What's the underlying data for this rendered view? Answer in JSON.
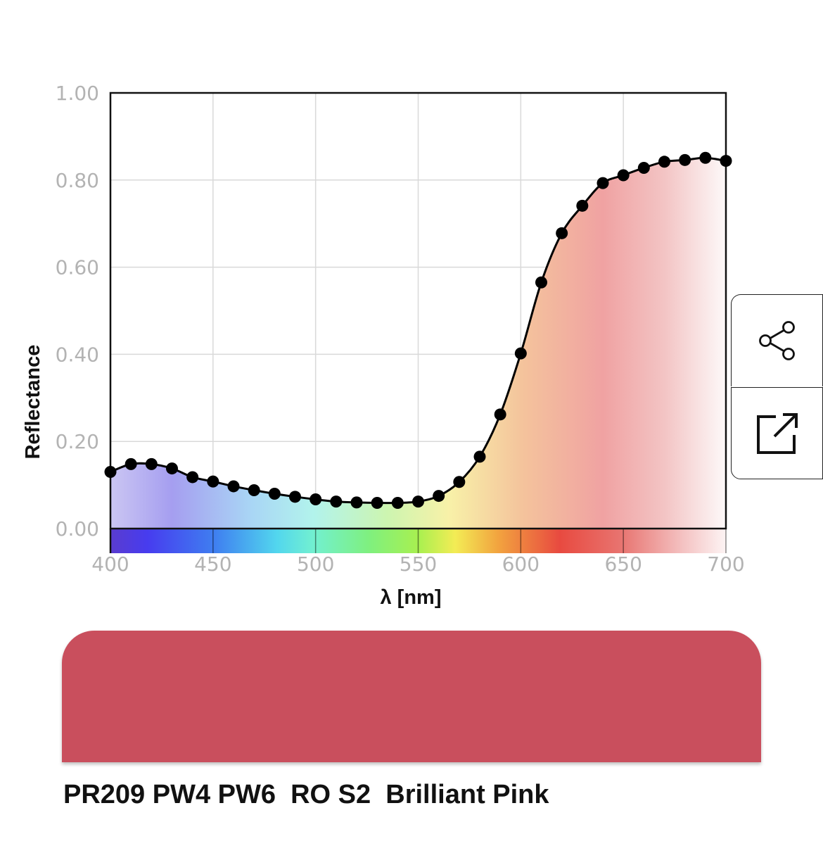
{
  "chart_data": {
    "type": "line",
    "title": "",
    "xlabel": "λ [nm]",
    "ylabel": "Reflectance",
    "xlim": [
      400,
      700
    ],
    "ylim": [
      0,
      1
    ],
    "x_ticks": [
      "400",
      "450",
      "500",
      "550",
      "600",
      "650",
      "700"
    ],
    "y_ticks": [
      "1.00",
      "0.80",
      "0.60",
      "0.40",
      "0.20",
      "0.00"
    ],
    "grid": true,
    "series": [
      {
        "x": [
          400,
          410,
          420,
          430,
          440,
          450,
          460,
          470,
          480,
          490,
          500,
          510,
          520,
          530,
          540,
          550,
          560,
          570,
          580,
          590,
          600,
          610,
          620,
          630,
          640,
          650,
          660,
          670,
          680,
          690,
          700
        ],
        "y": [
          0.13,
          0.148,
          0.148,
          0.138,
          0.118,
          0.108,
          0.097,
          0.088,
          0.08,
          0.073,
          0.067,
          0.062,
          0.06,
          0.059,
          0.059,
          0.062,
          0.075,
          0.107,
          0.165,
          0.262,
          0.402,
          0.565,
          0.678,
          0.741,
          0.793,
          0.811,
          0.828,
          0.842,
          0.846,
          0.851,
          0.844
        ]
      }
    ],
    "spectrum_colors": [
      "#5a3ccf",
      "#4a3ff0",
      "#3f7ff0",
      "#4fd0f0",
      "#6ff0d0",
      "#7ff07f",
      "#8ff050",
      "#c8f060",
      "#f5ee55",
      "#f5a040",
      "#e8603a",
      "#e84a40",
      "#e86c6a",
      "#f2b8b8",
      "#fbeeee"
    ]
  },
  "swatch_color": "#c94f5d",
  "paint_name": "PR209 PW4 PW6  RO S2  Brilliant Pink",
  "buttons": {
    "share_icon": "share-icon",
    "open_icon": "open-external-icon"
  }
}
